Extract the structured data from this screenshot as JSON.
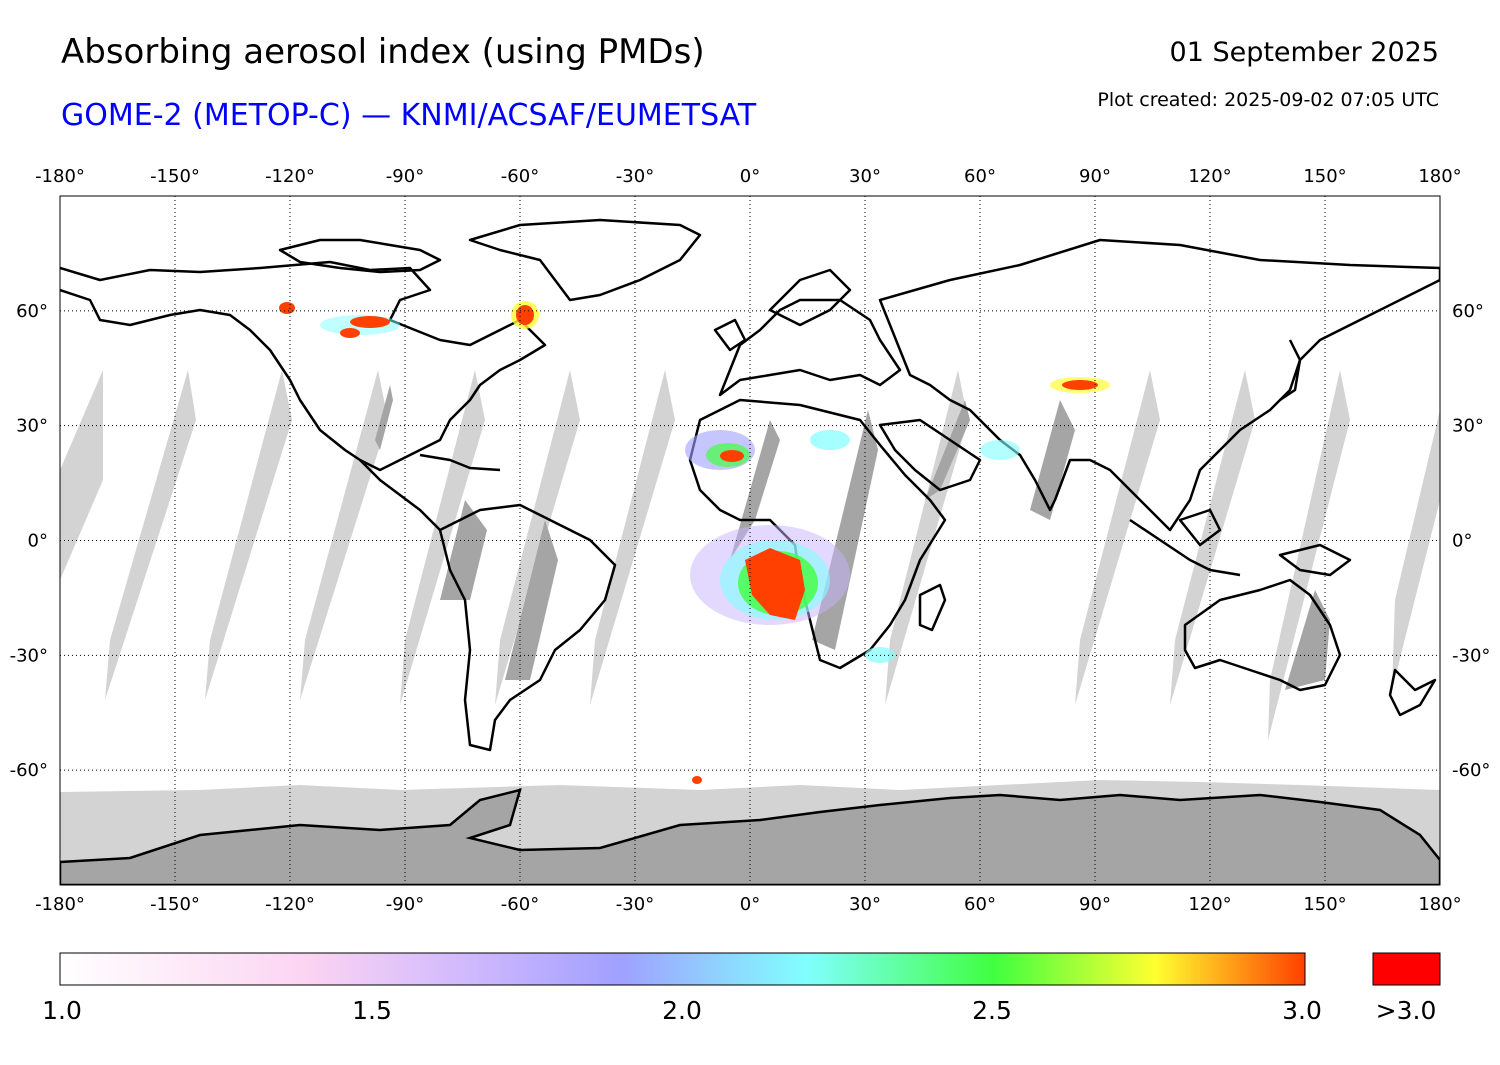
{
  "header": {
    "title": "Absorbing aerosol index (using PMDs)",
    "subtitle": "GOME-2 (METOP-C) — KNMI/ACSAF/EUMETSAT",
    "date": "01 September 2025",
    "created": "Plot created: 2025-09-02 07:05 UTC"
  },
  "map": {
    "projection": "plate carree",
    "lon_range": [
      -180,
      180
    ],
    "lat_range": [
      -90,
      90
    ],
    "lon_ticks": [
      "-180°",
      "-150°",
      "-120°",
      "-90°",
      "-60°",
      "-30°",
      "0°",
      "30°",
      "60°",
      "90°",
      "120°",
      "150°",
      "180°"
    ],
    "lat_ticks": [
      "60°",
      "30°",
      "0°",
      "-30°",
      "-60°"
    ],
    "grid": true,
    "colors": {
      "background": "#ffffff",
      "no_data_swath": "#d3d3d3",
      "no_data_dark": "#a5a5a5",
      "coastline": "#000000"
    }
  },
  "colorbar": {
    "ticks": [
      "1.0",
      "1.5",
      "2.0",
      "2.5",
      "3.0"
    ],
    "overflow_label": ">3.0",
    "overflow_color": "#ff0000",
    "stops": [
      "#ffffff",
      "#fbd4f2",
      "#c8b4ff",
      "#a0a0ff",
      "#80ffff",
      "#40ff40",
      "#ffff30",
      "#ff4000"
    ]
  }
}
